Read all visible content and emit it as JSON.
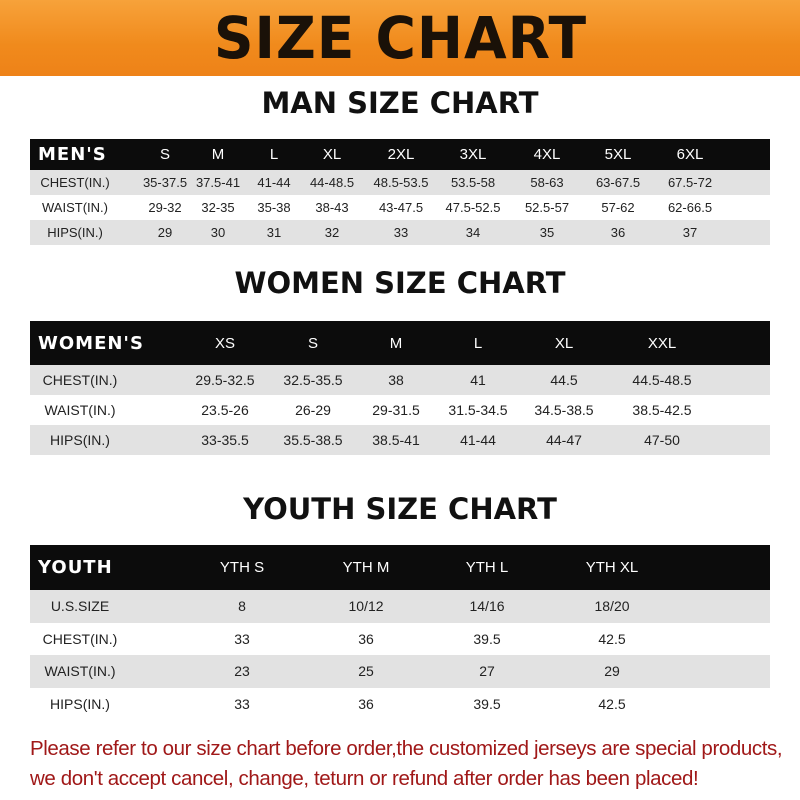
{
  "banner": {
    "title": "SIZE CHART",
    "color": "#f08a1c"
  },
  "men": {
    "title": "MAN SIZE CHART",
    "headers": [
      "MEN'S",
      "S",
      "M",
      "L",
      "XL",
      "2XL",
      "3XL",
      "4XL",
      "5XL",
      "6XL"
    ],
    "rows": [
      [
        "CHEST(IN.)",
        "35-37.5",
        "37.5-41",
        "41-44",
        "44-48.5",
        "48.5-53.5",
        "53.5-58",
        "58-63",
        "63-67.5",
        "67.5-72"
      ],
      [
        "WAIST(IN.)",
        "29-32",
        "32-35",
        "35-38",
        "38-43",
        "43-47.5",
        "47.5-52.5",
        "52.5-57",
        "57-62",
        "62-66.5"
      ],
      [
        "HIPS(IN.)",
        "29",
        "30",
        "31",
        "32",
        "33",
        "34",
        "35",
        "36",
        "37"
      ]
    ]
  },
  "women": {
    "title": "WOMEN SIZE CHART",
    "headers": [
      "WOMEN'S",
      "XS",
      "S",
      "M",
      "L",
      "XL",
      "XXL"
    ],
    "rows": [
      [
        "CHEST(IN.)",
        "29.5-32.5",
        "32.5-35.5",
        "38",
        "41",
        "44.5",
        "44.5-48.5"
      ],
      [
        "WAIST(IN.)",
        "23.5-26",
        "26-29",
        "29-31.5",
        "31.5-34.5",
        "34.5-38.5",
        "38.5-42.5"
      ],
      [
        "HIPS(IN.)",
        "33-35.5",
        "35.5-38.5",
        "38.5-41",
        "41-44",
        "44-47",
        "47-50"
      ]
    ]
  },
  "youth": {
    "title": "YOUTH SIZE CHART",
    "headers": [
      "YOUTH",
      "YTH S",
      "YTH M",
      "YTH L",
      "YTH XL"
    ],
    "rows": [
      [
        "U.S.SIZE",
        "8",
        "10/12",
        "14/16",
        "18/20"
      ],
      [
        "CHEST(IN.)",
        "33",
        "36",
        "39.5",
        "42.5"
      ],
      [
        "WAIST(IN.)",
        "23",
        "25",
        "27",
        "29"
      ],
      [
        "HIPS(IN.)",
        "33",
        "36",
        "39.5",
        "42.5"
      ]
    ]
  },
  "note": {
    "line1": "Please refer to our size chart before order,the customized jerseys are special products,",
    "line2": "we don't accept cancel, change, teturn or refund after order has been placed!",
    "color": "#a01818"
  }
}
